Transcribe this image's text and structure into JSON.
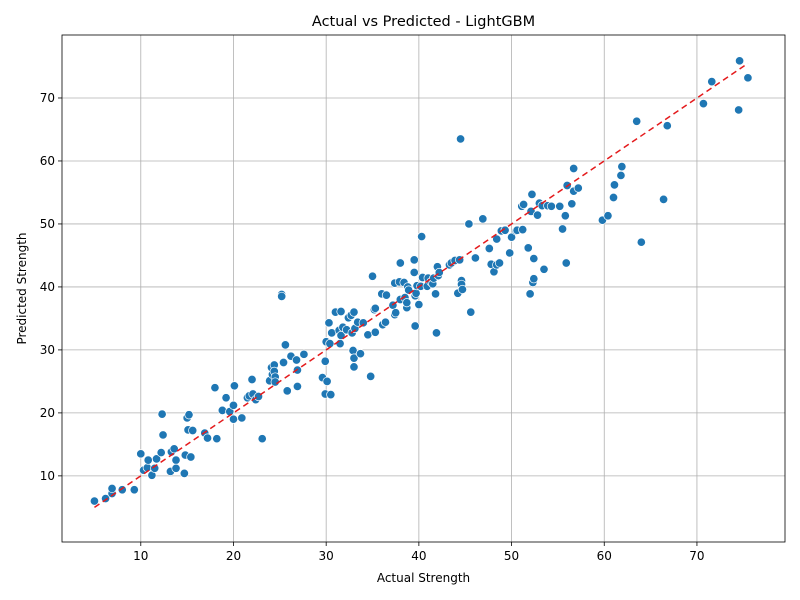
{
  "chart_data": {
    "type": "scatter",
    "title": "Actual vs Predicted - LightGBM",
    "xlabel": "Actual Strength",
    "ylabel": "Predicted Strength",
    "xlim": [
      1.5,
      79.5
    ],
    "ylim": [
      -0.5,
      80
    ],
    "xticks": [
      10,
      20,
      30,
      40,
      50,
      60,
      70
    ],
    "yticks": [
      10,
      20,
      30,
      40,
      50,
      60,
      70
    ],
    "grid": true,
    "point_color": "#1f77b4",
    "point_edge_color": "#ffffff",
    "reference_line": {
      "from": [
        5,
        5
      ],
      "to": [
        75.5,
        75.5
      ],
      "color": "#e41a1c",
      "style": "dashed"
    },
    "points": [
      [
        5,
        6
      ],
      [
        6.2,
        6.4
      ],
      [
        6.9,
        7.2
      ],
      [
        6.9,
        8
      ],
      [
        8,
        7.8
      ],
      [
        9.3,
        7.8
      ],
      [
        10,
        13.5
      ],
      [
        10.3,
        10.9
      ],
      [
        10.7,
        11.3
      ],
      [
        10.8,
        12.5
      ],
      [
        11.2,
        10.1
      ],
      [
        11.5,
        11.2
      ],
      [
        11.7,
        12.7
      ],
      [
        12.2,
        13.7
      ],
      [
        12.3,
        19.8
      ],
      [
        12.4,
        16.5
      ],
      [
        13.2,
        10.7
      ],
      [
        13.3,
        13.8
      ],
      [
        13.6,
        14.3
      ],
      [
        13.8,
        12.5
      ],
      [
        13.8,
        11.2
      ],
      [
        14.7,
        10.4
      ],
      [
        14.8,
        13.3
      ],
      [
        15,
        19.2
      ],
      [
        15.1,
        17.3
      ],
      [
        15.2,
        19.7
      ],
      [
        15.4,
        13
      ],
      [
        15.6,
        17.2
      ],
      [
        16.9,
        16.8
      ],
      [
        17.2,
        16
      ],
      [
        18,
        24
      ],
      [
        18.2,
        15.9
      ],
      [
        18.8,
        20.4
      ],
      [
        19.2,
        22.4
      ],
      [
        19.6,
        20.2
      ],
      [
        20,
        19
      ],
      [
        20,
        21.2
      ],
      [
        20.1,
        24.3
      ],
      [
        20.9,
        19.2
      ],
      [
        21.5,
        22.4
      ],
      [
        21.7,
        22.7
      ],
      [
        22,
        25.3
      ],
      [
        22.1,
        23
      ],
      [
        22.4,
        22.1
      ],
      [
        22.7,
        22.6
      ],
      [
        23.1,
        15.9
      ],
      [
        23.9,
        25.1
      ],
      [
        24.1,
        27.2
      ],
      [
        24.2,
        26.1
      ],
      [
        24.4,
        27.6
      ],
      [
        24.4,
        26.6
      ],
      [
        24.5,
        25.7
      ],
      [
        24.5,
        24.9
      ],
      [
        25.2,
        38.8
      ],
      [
        25.2,
        38.5
      ],
      [
        25.4,
        28
      ],
      [
        25.6,
        30.8
      ],
      [
        25.8,
        23.5
      ],
      [
        26.2,
        29
      ],
      [
        26.8,
        28.4
      ],
      [
        26.9,
        26.8
      ],
      [
        26.9,
        24.2
      ],
      [
        27.6,
        29.3
      ],
      [
        29.6,
        25.6
      ],
      [
        29.9,
        23
      ],
      [
        29.9,
        28.2
      ],
      [
        30,
        31.3
      ],
      [
        30.1,
        25
      ],
      [
        30.3,
        34.3
      ],
      [
        30.4,
        31
      ],
      [
        30.5,
        22.9
      ],
      [
        30.6,
        32.7
      ],
      [
        31,
        36
      ],
      [
        31.4,
        33.1
      ],
      [
        31.5,
        31
      ],
      [
        31.6,
        36.1
      ],
      [
        31.6,
        32.3
      ],
      [
        31.8,
        33.6
      ],
      [
        32.2,
        33.2
      ],
      [
        32.4,
        35.1
      ],
      [
        32.7,
        35.5
      ],
      [
        32.8,
        32.7
      ],
      [
        32.9,
        29.9
      ],
      [
        33,
        36
      ],
      [
        33,
        28.7
      ],
      [
        33,
        27.3
      ],
      [
        33.1,
        33.4
      ],
      [
        33.4,
        34.4
      ],
      [
        33.7,
        29.4
      ],
      [
        34,
        34.3
      ],
      [
        34.5,
        32.4
      ],
      [
        34.8,
        25.8
      ],
      [
        35,
        41.7
      ],
      [
        35.2,
        36.4
      ],
      [
        35.3,
        32.8
      ],
      [
        35.3,
        36.6
      ],
      [
        36,
        38.9
      ],
      [
        36.1,
        34
      ],
      [
        36.4,
        34.4
      ],
      [
        36.5,
        38.7
      ],
      [
        37.2,
        37.1
      ],
      [
        37.4,
        40.6
      ],
      [
        37.4,
        35.6
      ],
      [
        37.5,
        35.9
      ],
      [
        37.9,
        40.8
      ],
      [
        38,
        38
      ],
      [
        38,
        43.8
      ],
      [
        38.4,
        40.7
      ],
      [
        38.5,
        38.3
      ],
      [
        38.7,
        36.7
      ],
      [
        38.7,
        37.5
      ],
      [
        38.8,
        40
      ],
      [
        38.9,
        39.5
      ],
      [
        39.5,
        44.3
      ],
      [
        39.5,
        42.3
      ],
      [
        39.6,
        38.6
      ],
      [
        39.6,
        33.8
      ],
      [
        39.7,
        39
      ],
      [
        39.8,
        40.2
      ],
      [
        40,
        37.2
      ],
      [
        40.2,
        40.1
      ],
      [
        40.3,
        48
      ],
      [
        40.4,
        41.5
      ],
      [
        40.9,
        40.1
      ],
      [
        41,
        41.4
      ],
      [
        41.3,
        40.8
      ],
      [
        41.5,
        40.5
      ],
      [
        41.6,
        41.4
      ],
      [
        41.8,
        38.9
      ],
      [
        41.9,
        32.7
      ],
      [
        42,
        43.2
      ],
      [
        42.1,
        41.8
      ],
      [
        42.2,
        42.3
      ],
      [
        43.3,
        43.5
      ],
      [
        43.5,
        43.8
      ],
      [
        43.9,
        44.2
      ],
      [
        44.2,
        39
      ],
      [
        44.4,
        44.3
      ],
      [
        44.5,
        63.5
      ],
      [
        44.6,
        41
      ],
      [
        44.6,
        40.4
      ],
      [
        44.7,
        39.6
      ],
      [
        45.4,
        50
      ],
      [
        45.6,
        36
      ],
      [
        46.1,
        44.6
      ],
      [
        46.9,
        50.8
      ],
      [
        47.6,
        46.1
      ],
      [
        47.8,
        43.6
      ],
      [
        48.1,
        42.4
      ],
      [
        48.4,
        43.5
      ],
      [
        48.4,
        47.6
      ],
      [
        48.7,
        43.8
      ],
      [
        48.9,
        48.9
      ],
      [
        49.3,
        49
      ],
      [
        49.8,
        45.4
      ],
      [
        50,
        47.9
      ],
      [
        50.5,
        48.9
      ],
      [
        50.6,
        49
      ],
      [
        51.1,
        52.8
      ],
      [
        51.2,
        49.1
      ],
      [
        51.3,
        53.1
      ],
      [
        51.8,
        46.2
      ],
      [
        52,
        38.9
      ],
      [
        52.1,
        52
      ],
      [
        52.2,
        54.7
      ],
      [
        52.3,
        40.7
      ],
      [
        52.4,
        41.3
      ],
      [
        52.4,
        44.5
      ],
      [
        52.8,
        51.4
      ],
      [
        53,
        53.3
      ],
      [
        53.3,
        52.9
      ],
      [
        53.5,
        42.8
      ],
      [
        53.9,
        52.9
      ],
      [
        54.3,
        52.8
      ],
      [
        55.2,
        52.8
      ],
      [
        55.5,
        49.2
      ],
      [
        55.8,
        51.3
      ],
      [
        55.9,
        43.8
      ],
      [
        56,
        56.1
      ],
      [
        56.5,
        53.2
      ],
      [
        56.7,
        58.8
      ],
      [
        56.7,
        55.2
      ],
      [
        57.2,
        55.7
      ],
      [
        59.8,
        50.6
      ],
      [
        60.4,
        51.3
      ],
      [
        61,
        54.2
      ],
      [
        61.1,
        56.2
      ],
      [
        61.8,
        57.7
      ],
      [
        61.9,
        59.1
      ],
      [
        63.5,
        66.3
      ],
      [
        64,
        47.1
      ],
      [
        66.4,
        53.9
      ],
      [
        66.8,
        65.6
      ],
      [
        70.7,
        69.1
      ],
      [
        71.6,
        72.6
      ],
      [
        74.5,
        68.1
      ],
      [
        74.6,
        75.9
      ],
      [
        75.5,
        73.2
      ]
    ]
  }
}
